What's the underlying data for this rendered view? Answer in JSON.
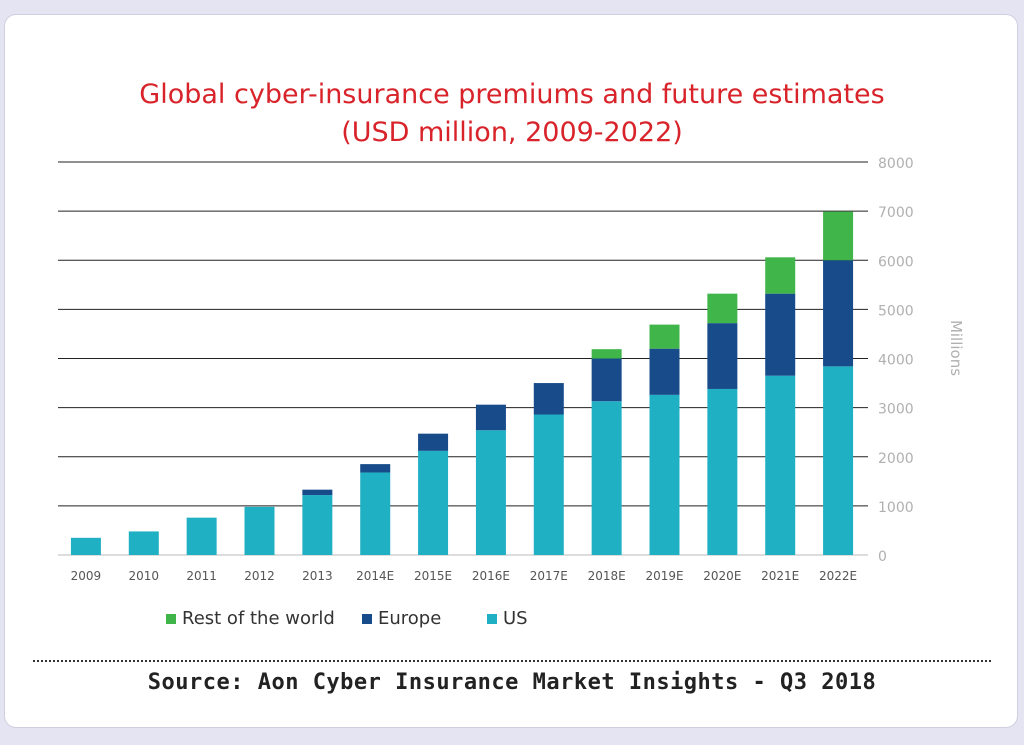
{
  "chart_data": {
    "type": "bar",
    "stacked": true,
    "title": "Global cyber-insurance premiums and future estimates",
    "subtitle": "(USD million, 2009-2022)",
    "ylabel": "Millions",
    "xlabel": "",
    "ylim": [
      0,
      8000
    ],
    "yticks": [
      0,
      1000,
      2000,
      3000,
      4000,
      5000,
      6000,
      7000,
      8000
    ],
    "categories": [
      "2009",
      "2010",
      "2011",
      "2012",
      "2013",
      "2014E",
      "2015E",
      "2016E",
      "2017E",
      "2018E",
      "2019E",
      "2020E",
      "2021E",
      "2022E"
    ],
    "series": [
      {
        "name": "US",
        "color": "#20b0c4",
        "values": [
          350,
          480,
          760,
          980,
          1220,
          1680,
          2120,
          2540,
          2860,
          3130,
          3260,
          3380,
          3650,
          3840
        ]
      },
      {
        "name": "Europe",
        "color": "#174b8a",
        "values": [
          0,
          0,
          0,
          0,
          110,
          170,
          350,
          520,
          640,
          870,
          940,
          1340,
          1670,
          2160
        ]
      },
      {
        "name": "Rest of the world",
        "color": "#40b54a",
        "values": [
          0,
          0,
          0,
          0,
          0,
          0,
          0,
          0,
          0,
          190,
          490,
          600,
          740,
          990
        ]
      }
    ],
    "legend": [
      "Rest of the world",
      "Europe",
      "US"
    ],
    "legend_position": "bottom-left",
    "grid": true
  },
  "source": "Source: Aon Cyber Insurance Market Insights - Q3 2018"
}
